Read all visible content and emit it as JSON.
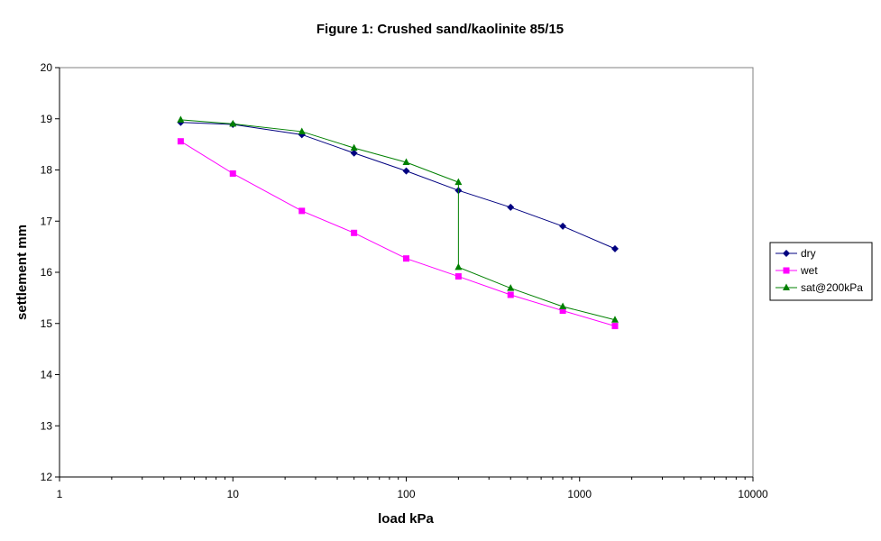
{
  "chart_data": {
    "type": "scatter",
    "title": "Figure 1: Crushed sand/kaolinite  85/15",
    "xlabel": "load kPa",
    "ylabel": "settlement mm",
    "xscale": "log",
    "xlim": [
      1,
      10000
    ],
    "ylim": [
      12,
      20
    ],
    "x_ticks": [
      1,
      10,
      100,
      1000,
      10000
    ],
    "x_tick_labels": [
      "1",
      "10",
      "100",
      "1000",
      "10000"
    ],
    "y_ticks": [
      12,
      13,
      14,
      15,
      16,
      17,
      18,
      19,
      20
    ],
    "y_tick_labels": [
      "12",
      "13",
      "14",
      "15",
      "16",
      "17",
      "18",
      "19",
      "20"
    ],
    "grid": false,
    "legend_position": "right",
    "series": [
      {
        "name": "dry",
        "color": "#000080",
        "marker": "diamond",
        "x": [
          5,
          10,
          25,
          50,
          100,
          200,
          400,
          800,
          1600
        ],
        "y": [
          18.93,
          18.89,
          18.69,
          18.33,
          17.98,
          17.6,
          17.27,
          16.9,
          16.46
        ]
      },
      {
        "name": "wet",
        "color": "#FF00FF",
        "marker": "square",
        "x": [
          5,
          10,
          25,
          50,
          100,
          200,
          400,
          800,
          1600
        ],
        "y": [
          18.56,
          17.93,
          17.2,
          16.77,
          16.27,
          15.92,
          15.56,
          15.25,
          14.95
        ]
      },
      {
        "name": "sat@200kPa",
        "color": "#008000",
        "marker": "triangle",
        "x": [
          5,
          10,
          25,
          50,
          100,
          200,
          200,
          400,
          800,
          1600
        ],
        "y": [
          18.98,
          18.9,
          18.75,
          18.43,
          18.15,
          17.76,
          16.1,
          15.69,
          15.33,
          15.07
        ]
      }
    ]
  }
}
